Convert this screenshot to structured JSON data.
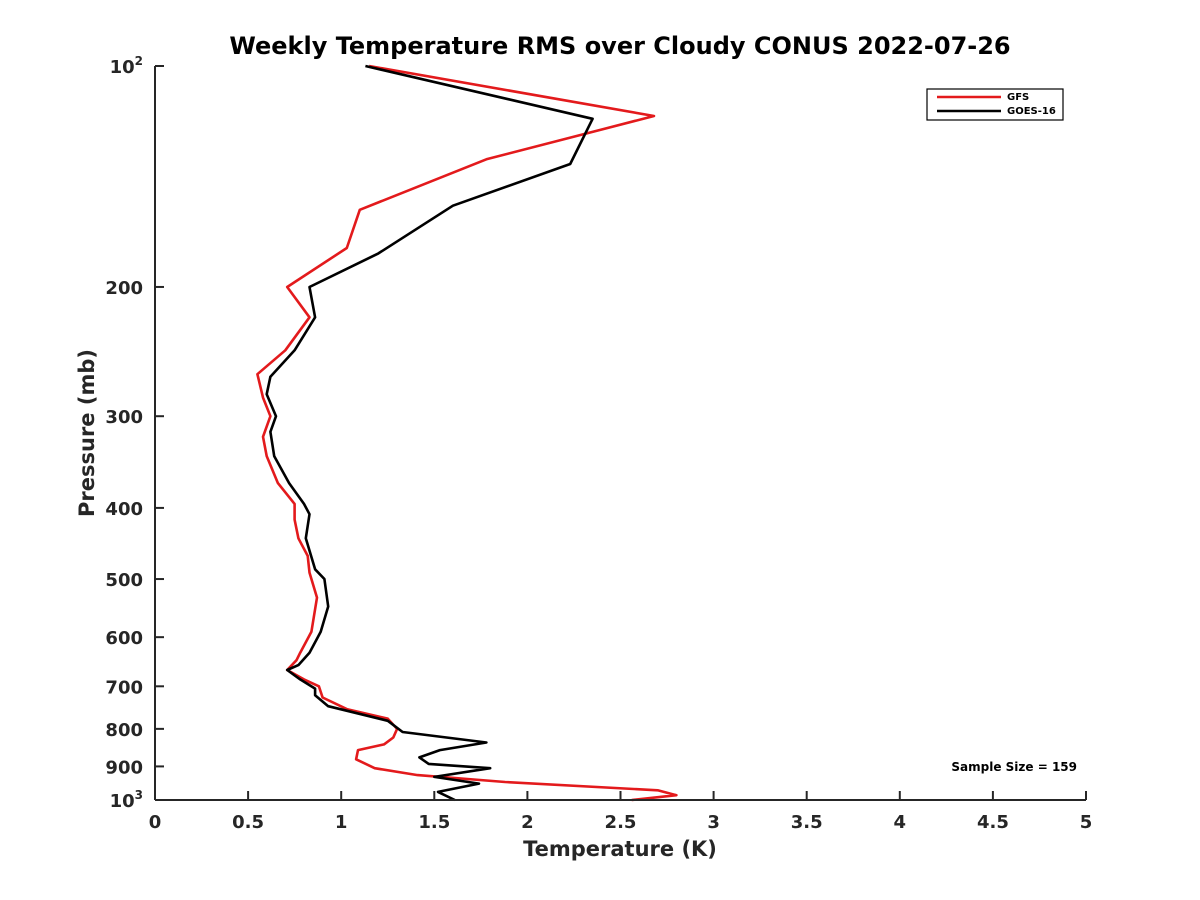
{
  "chart_data": {
    "type": "line",
    "title": "Weekly Temperature RMS over Cloudy CONUS 2022-07-26",
    "xlabel": "Temperature (K)",
    "ylabel": "Pressure (mb)",
    "xlim": [
      0,
      5
    ],
    "ylim": [
      100,
      1000
    ],
    "yscale": "log",
    "y_reversed": true,
    "grid": false,
    "legend_position": "top-right",
    "x_ticks": [
      "0",
      "0.5",
      "1",
      "1.5",
      "2",
      "2.5",
      "3",
      "3.5",
      "4",
      "4.5",
      "5"
    ],
    "x_tick_values": [
      0,
      0.5,
      1,
      1.5,
      2,
      2.5,
      3,
      3.5,
      4,
      4.5,
      5
    ],
    "y_ticks": [
      {
        "value": 100,
        "base": "10",
        "exp": "2",
        "label": ""
      },
      {
        "value": 200,
        "label": "200"
      },
      {
        "value": 300,
        "label": "300"
      },
      {
        "value": 400,
        "label": "400"
      },
      {
        "value": 500,
        "label": "500"
      },
      {
        "value": 600,
        "label": "600"
      },
      {
        "value": 700,
        "label": "700"
      },
      {
        "value": 800,
        "label": "800"
      },
      {
        "value": 900,
        "label": "900"
      },
      {
        "value": 1000,
        "base": "10",
        "exp": "3",
        "label": ""
      }
    ],
    "annotation": "Sample Size = 159",
    "series": [
      {
        "name": "GFS",
        "color": "#e31a1c",
        "points": [
          [
            1.15,
            100
          ],
          [
            2.68,
            117
          ],
          [
            1.78,
            134
          ],
          [
            1.1,
            157
          ],
          [
            1.03,
            177
          ],
          [
            0.71,
            200
          ],
          [
            0.83,
            220
          ],
          [
            0.7,
            244
          ],
          [
            0.55,
            263
          ],
          [
            0.58,
            283
          ],
          [
            0.62,
            300
          ],
          [
            0.58,
            320
          ],
          [
            0.6,
            340
          ],
          [
            0.66,
            370
          ],
          [
            0.75,
            395
          ],
          [
            0.75,
            415
          ],
          [
            0.77,
            440
          ],
          [
            0.82,
            465
          ],
          [
            0.83,
            490
          ],
          [
            0.87,
            530
          ],
          [
            0.84,
            590
          ],
          [
            0.78,
            630
          ],
          [
            0.76,
            645
          ],
          [
            0.71,
            665
          ],
          [
            0.8,
            685
          ],
          [
            0.88,
            700
          ],
          [
            0.9,
            725
          ],
          [
            1.03,
            752
          ],
          [
            1.25,
            775
          ],
          [
            1.3,
            800
          ],
          [
            1.28,
            822
          ],
          [
            1.23,
            840
          ],
          [
            1.09,
            855
          ],
          [
            1.08,
            880
          ],
          [
            1.18,
            905
          ],
          [
            1.41,
            925
          ],
          [
            1.88,
            945
          ],
          [
            2.7,
            970
          ],
          [
            2.8,
            985
          ],
          [
            2.56,
            1000
          ]
        ]
      },
      {
        "name": "GOES-16",
        "color": "#000000",
        "points": [
          [
            1.13,
            100
          ],
          [
            2.35,
            118
          ],
          [
            2.23,
            136
          ],
          [
            1.6,
            155
          ],
          [
            1.2,
            180
          ],
          [
            0.83,
            200
          ],
          [
            0.86,
            220
          ],
          [
            0.75,
            244
          ],
          [
            0.62,
            265
          ],
          [
            0.6,
            280
          ],
          [
            0.65,
            300
          ],
          [
            0.62,
            315
          ],
          [
            0.64,
            340
          ],
          [
            0.72,
            370
          ],
          [
            0.8,
            395
          ],
          [
            0.83,
            408
          ],
          [
            0.81,
            440
          ],
          [
            0.86,
            485
          ],
          [
            0.91,
            500
          ],
          [
            0.93,
            545
          ],
          [
            0.89,
            590
          ],
          [
            0.83,
            630
          ],
          [
            0.77,
            655
          ],
          [
            0.71,
            665
          ],
          [
            0.78,
            685
          ],
          [
            0.86,
            705
          ],
          [
            0.86,
            720
          ],
          [
            0.93,
            745
          ],
          [
            1.25,
            780
          ],
          [
            1.33,
            808
          ],
          [
            1.78,
            835
          ],
          [
            1.53,
            855
          ],
          [
            1.42,
            875
          ],
          [
            1.47,
            893
          ],
          [
            1.8,
            905
          ],
          [
            1.5,
            930
          ],
          [
            1.74,
            950
          ],
          [
            1.52,
            975
          ],
          [
            1.61,
            1000
          ]
        ]
      }
    ]
  }
}
